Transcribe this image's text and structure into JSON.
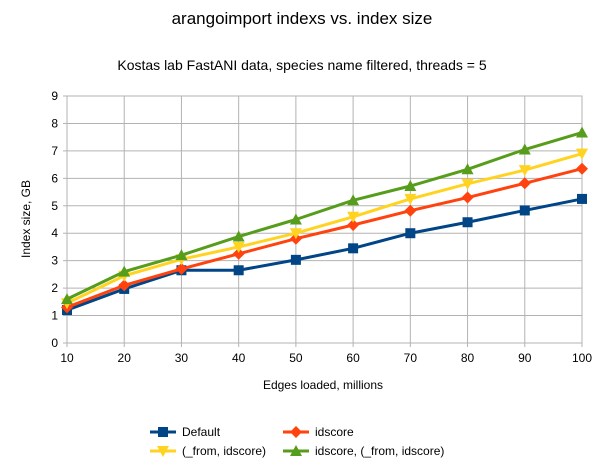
{
  "chart_data": {
    "type": "line",
    "title": "arangoimport indexs vs. index size",
    "subtitle": "Kostas lab FastANI data, species name filtered, threads = 5",
    "xlabel": "Edges loaded, millions",
    "ylabel": "Index size, GB",
    "x": [
      10,
      20,
      30,
      40,
      50,
      60,
      70,
      80,
      90,
      100
    ],
    "xlim": [
      10,
      100
    ],
    "ylim": [
      0,
      9
    ],
    "yticks": [
      0,
      1,
      2,
      3,
      4,
      5,
      6,
      7,
      8,
      9
    ],
    "grid": true,
    "legend_position": "bottom",
    "series": [
      {
        "name": "Default",
        "color": "#004586",
        "marker": "square",
        "values": [
          1.2,
          1.97,
          2.65,
          2.65,
          3.03,
          3.45,
          4.0,
          4.4,
          4.83,
          5.25
        ]
      },
      {
        "name": "idscore",
        "color": "#ff420e",
        "marker": "diamond",
        "values": [
          1.3,
          2.1,
          2.7,
          3.25,
          3.8,
          4.3,
          4.82,
          5.3,
          5.82,
          6.35
        ]
      },
      {
        "name": "(_from, idscore)",
        "color": "#ffd320",
        "marker": "triangle-down",
        "values": [
          1.45,
          2.45,
          3.05,
          3.5,
          4.0,
          4.6,
          5.25,
          5.8,
          6.3,
          6.9
        ]
      },
      {
        "name": "idscore, (_from, idscore)",
        "color": "#579d1c",
        "marker": "triangle-up",
        "values": [
          1.6,
          2.6,
          3.2,
          3.88,
          4.5,
          5.2,
          5.72,
          6.33,
          7.05,
          7.67
        ]
      }
    ]
  }
}
